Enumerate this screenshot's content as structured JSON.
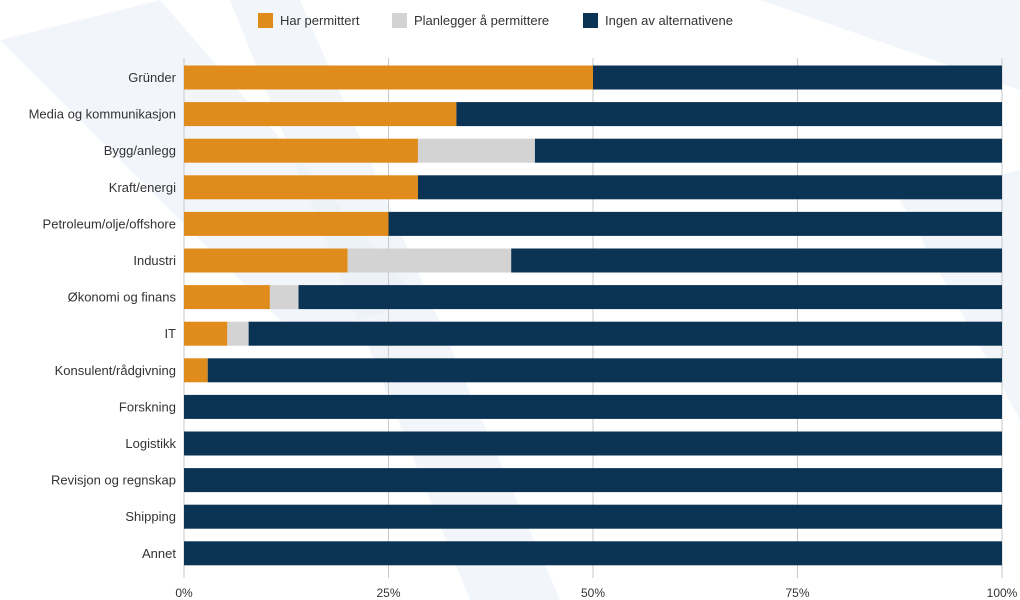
{
  "chart_data": {
    "type": "bar",
    "orientation": "horizontal",
    "stacked": true,
    "categories": [
      "Gründer",
      "Media og kommunikasjon",
      "Bygg/anlegg",
      "Kraft/energi",
      "Petroleum/olje/offshore",
      "Industri",
      "Økonomi og finans",
      "IT",
      "Konsulent/rådgivning",
      "Forskning",
      "Logistikk",
      "Revisjon og regnskap",
      "Shipping",
      "Annet"
    ],
    "series": [
      {
        "name": "Har permittert",
        "color": "#e08c1d",
        "values": [
          50.0,
          33.3,
          28.6,
          28.6,
          25.0,
          20.0,
          10.5,
          5.3,
          2.9,
          0,
          0,
          0,
          0,
          0
        ]
      },
      {
        "name": "Planlegger å permittere",
        "color": "#d3d3d3",
        "values": [
          0,
          0,
          14.3,
          0,
          0,
          20.0,
          3.5,
          2.6,
          0,
          0,
          0,
          0,
          0,
          0
        ]
      },
      {
        "name": "Ingen av alternativene",
        "color": "#0b3354",
        "values": [
          50.0,
          66.7,
          57.1,
          71.4,
          75.0,
          60.0,
          86.0,
          92.1,
          97.1,
          100,
          100,
          100,
          100,
          100
        ]
      }
    ],
    "x_ticks": [
      "0%",
      "25%",
      "50%",
      "75%",
      "100%"
    ],
    "xlim": [
      0,
      100
    ],
    "grid": true,
    "legend_position": "top-center"
  }
}
